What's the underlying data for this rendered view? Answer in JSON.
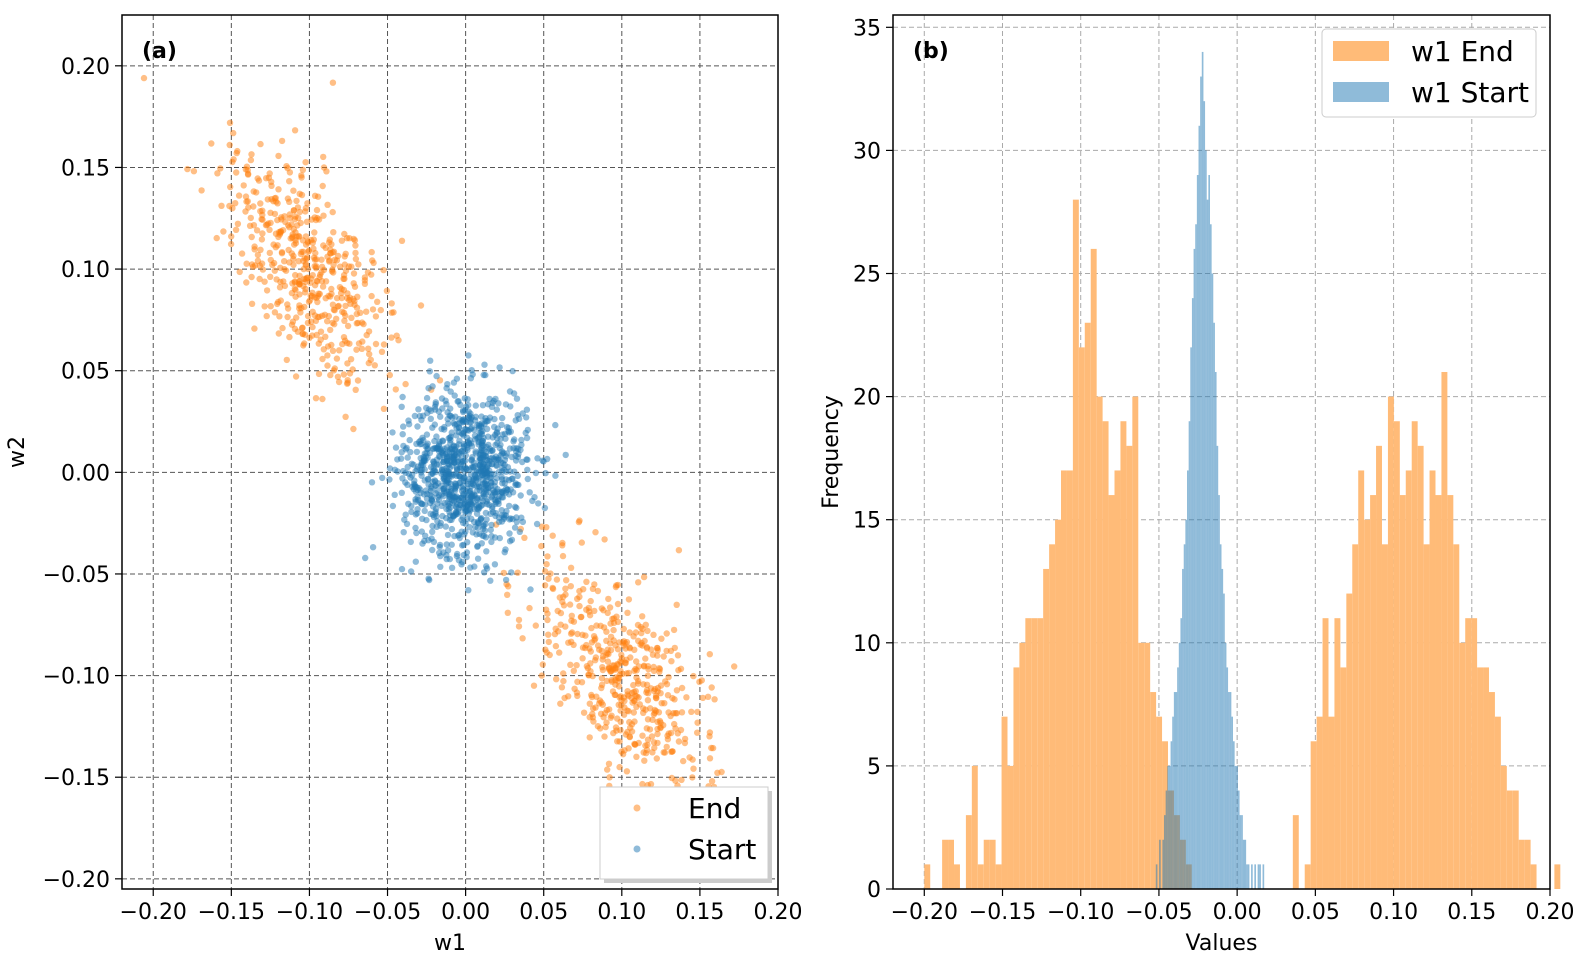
{
  "chart_data": [
    {
      "type": "scatter",
      "panel_label": "(a)",
      "xlabel": "w1",
      "ylabel": "w2",
      "xlim": [
        -0.22,
        0.2
      ],
      "ylim": [
        -0.205,
        0.225
      ],
      "xticks": [
        -0.2,
        -0.15,
        -0.1,
        -0.05,
        0.0,
        0.05,
        0.1,
        0.15,
        0.2
      ],
      "yticks": [
        -0.2,
        -0.15,
        -0.1,
        -0.05,
        0.0,
        0.05,
        0.1,
        0.15,
        0.2
      ],
      "xtick_labels": [
        "−0.20",
        "−0.15",
        "−0.10",
        "−0.05",
        "0.00",
        "0.05",
        "0.10",
        "0.15",
        "0.20"
      ],
      "ytick_labels": [
        "−0.20",
        "−0.15",
        "−0.10",
        "−0.05",
        "0.00",
        "0.05",
        "0.10",
        "0.15",
        "0.20"
      ],
      "grid": true,
      "legend_position": "bottom-right",
      "series": [
        {
          "name": "End",
          "color": "#ff7f0e",
          "distribution": "bimodal along w2 = -w1",
          "clusters": [
            {
              "center": [
                -0.1,
                0.1
              ],
              "std_along": 0.035,
              "std_across": 0.018,
              "count": 500
            },
            {
              "center": [
                0.1,
                -0.1
              ],
              "std_along": 0.035,
              "std_across": 0.018,
              "count": 500
            }
          ]
        },
        {
          "name": "Start",
          "color": "#1f77b4",
          "distribution": "isotropic gaussian",
          "clusters": [
            {
              "center": [
                0.0,
                0.0
              ],
              "std_along": 0.02,
              "std_across": 0.02,
              "count": 1000
            }
          ]
        }
      ]
    },
    {
      "type": "bar",
      "panel_label": "(b)",
      "xlabel": "Values",
      "ylabel": "Frequency",
      "xlim": [
        -0.22,
        0.2
      ],
      "ylim": [
        0,
        35.5
      ],
      "xticks": [
        -0.2,
        -0.15,
        -0.1,
        -0.05,
        0.0,
        0.05,
        0.1,
        0.15,
        0.2
      ],
      "yticks": [
        0,
        5,
        10,
        15,
        20,
        25,
        30,
        35
      ],
      "xtick_labels": [
        "−0.20",
        "−0.15",
        "−0.10",
        "−0.05",
        "0.00",
        "0.05",
        "0.10",
        "0.15",
        "0.20"
      ],
      "ytick_labels": [
        "0",
        "5",
        "10",
        "15",
        "20",
        "25",
        "30",
        "35"
      ],
      "grid": true,
      "legend_position": "top-right",
      "series": [
        {
          "name": "w1 End",
          "color": "#ffbb78",
          "bin_start": -0.2,
          "bin_width": 0.0038,
          "values": [
            1,
            0,
            0,
            2,
            2,
            1,
            0,
            3,
            5,
            1,
            2,
            2,
            1,
            7,
            5,
            9,
            10,
            11,
            11,
            11,
            13,
            14,
            15,
            17,
            17,
            28,
            22,
            23,
            26,
            20,
            19,
            16,
            17,
            19,
            18,
            20,
            10,
            10,
            8,
            7,
            6,
            4,
            3,
            2,
            1,
            0,
            0,
            0,
            0,
            0,
            0,
            0,
            0,
            0,
            0,
            0,
            0,
            0,
            0,
            0,
            0,
            0,
            3,
            0,
            1,
            6,
            7,
            11,
            7,
            11,
            9,
            12,
            14,
            17,
            15,
            16,
            18,
            14,
            20,
            19,
            16,
            17,
            19,
            18,
            14,
            17,
            16,
            21,
            16,
            14,
            10,
            11,
            11,
            9,
            9,
            8,
            7,
            5,
            4,
            4,
            2,
            2,
            1,
            0,
            0,
            0,
            1
          ]
        },
        {
          "name": "w1 Start",
          "color": "#1f77b4",
          "bin_start": -0.052,
          "bin_width": 0.00105,
          "values": [
            1,
            0,
            2,
            0,
            2,
            3,
            4,
            5,
            5,
            6,
            7,
            8,
            8,
            9,
            10,
            11,
            13,
            14,
            15,
            17,
            19,
            22,
            24,
            26,
            27,
            29,
            31,
            33,
            34,
            32,
            30,
            28,
            29,
            27,
            25,
            23,
            21,
            18,
            16,
            14,
            13,
            12,
            10,
            9,
            8,
            8,
            7,
            6,
            5,
            5,
            4,
            3,
            3,
            2,
            2,
            1,
            1,
            0,
            1,
            0,
            1,
            0,
            1,
            1,
            0,
            1
          ]
        }
      ]
    }
  ]
}
